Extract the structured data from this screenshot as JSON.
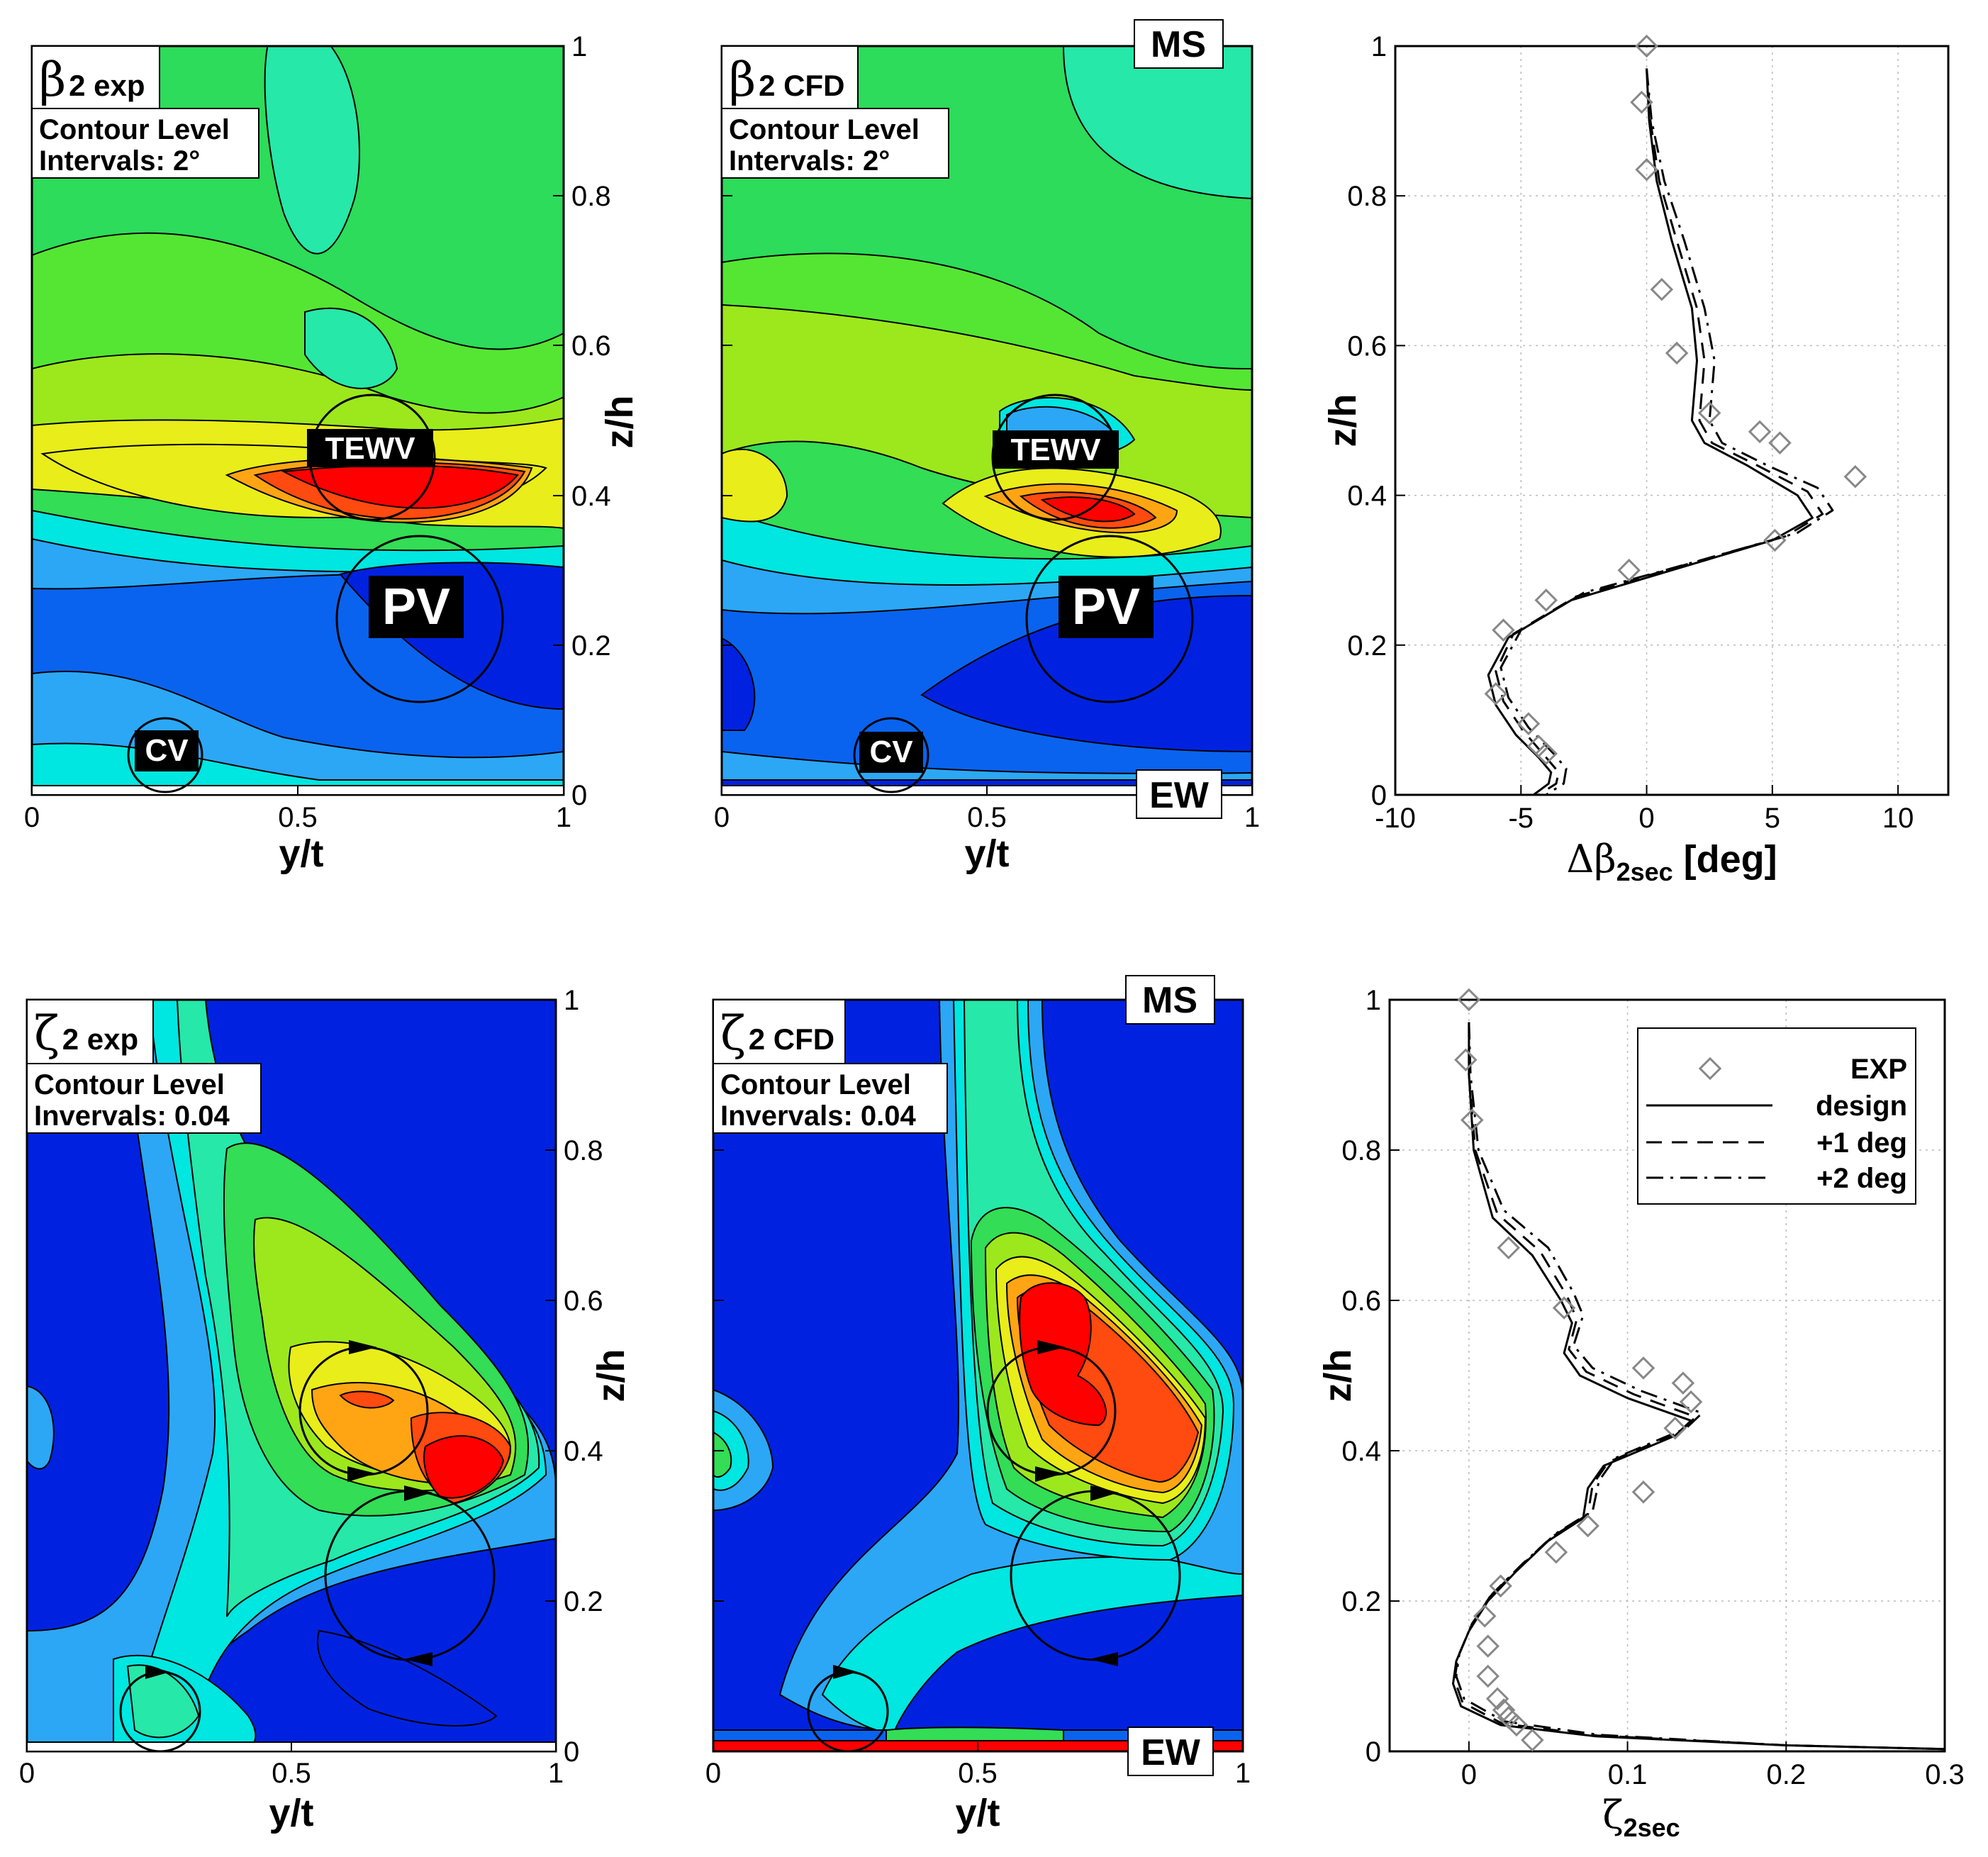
{
  "chart_data": [
    {
      "type": "heatmap",
      "title": "β2 exp",
      "symbol": "β",
      "subscript": "2 exp",
      "contour_text": [
        "Contour Level",
        "Intervals: 2°"
      ],
      "xlabel": "y/t",
      "ylabel": "z/h",
      "xlim": [
        0,
        1
      ],
      "ylim": [
        0,
        1
      ],
      "xticks": [
        "0",
        "0.5",
        "1"
      ],
      "yticks": [
        "0",
        "0.2",
        "0.4",
        "0.6",
        "0.8",
        "1"
      ],
      "labels": [
        "TEWV",
        "PV",
        "CV"
      ],
      "colors": [
        "#0022e0",
        "#0a63ee",
        "#2ca7f5",
        "#00e6e0",
        "#26e8a8",
        "#33dd55",
        "#55e633",
        "#9ce81d",
        "#e9ed1a",
        "#ffa514",
        "#ff4a10",
        "#ff0000"
      ]
    },
    {
      "type": "heatmap",
      "title": "β2 CFD",
      "symbol": "β",
      "subscript": "2 CFD",
      "contour_text": [
        "Contour Level",
        "Intervals: 2°"
      ],
      "xlabel": "y/t",
      "ylabel": "z/h",
      "xlim": [
        0,
        1
      ],
      "ylim": [
        0,
        1
      ],
      "xticks": [
        "0",
        "0.5",
        "1"
      ],
      "yticks": [
        "0",
        "0.2",
        "0.4",
        "0.6",
        "0.8",
        "1"
      ],
      "labels": [
        "TEWV",
        "PV",
        "CV",
        "MS",
        "EW"
      ]
    },
    {
      "type": "line",
      "xlabel": "Δβ2sec [deg]",
      "xlabel_main": "Δβ",
      "xlabel_sub": "2sec",
      "xlabel_unit": " [deg]",
      "ylabel": "z/h",
      "xlim": [
        -10,
        12
      ],
      "ylim": [
        0,
        1
      ],
      "xticks": [
        -10,
        -5,
        0,
        5,
        10
      ],
      "yticks": [
        0,
        0.2,
        0.4,
        0.6,
        0.8,
        1
      ],
      "grid": true,
      "series": [
        {
          "name": "EXP",
          "style": "marker",
          "x": [
            0,
            -0.2,
            0,
            0.6,
            1.2,
            2.5,
            4.5,
            5.3,
            8.3,
            5.1,
            -0.7,
            -4.0,
            -5.7,
            -6.0,
            -4.7,
            -4.3,
            -4.0
          ],
          "y": [
            1.0,
            0.925,
            0.835,
            0.675,
            0.59,
            0.51,
            0.485,
            0.47,
            0.425,
            0.34,
            0.3,
            0.26,
            0.22,
            0.135,
            0.095,
            0.065,
            0.055
          ]
        },
        {
          "name": "design",
          "style": "solid",
          "x": [
            0,
            0.1,
            0.4,
            1.0,
            1.8,
            2.0,
            1.8,
            2.3,
            4.0,
            6.0,
            6.6,
            5.0,
            1.0,
            -3.0,
            -5.5,
            -6.3,
            -6.0,
            -5.2,
            -4.3,
            -3.8,
            -3.9,
            -4.5
          ],
          "y": [
            0.97,
            0.9,
            0.82,
            0.74,
            0.65,
            0.58,
            0.5,
            0.47,
            0.44,
            0.4,
            0.37,
            0.34,
            0.3,
            0.26,
            0.21,
            0.16,
            0.12,
            0.08,
            0.05,
            0.03,
            0.015,
            0.0
          ]
        },
        {
          "name": "+1 deg",
          "style": "dashed",
          "x": [
            0,
            0.15,
            0.5,
            1.2,
            2.0,
            2.3,
            2.1,
            2.6,
            4.4,
            6.4,
            7.0,
            5.5,
            1.3,
            -2.8,
            -5.3,
            -6.0,
            -5.7,
            -4.9,
            -4.0,
            -3.5,
            -3.6,
            -4.3
          ],
          "y": [
            0.97,
            0.9,
            0.82,
            0.74,
            0.65,
            0.58,
            0.5,
            0.47,
            0.44,
            0.405,
            0.375,
            0.345,
            0.305,
            0.265,
            0.215,
            0.165,
            0.125,
            0.085,
            0.05,
            0.03,
            0.015,
            0.0
          ]
        },
        {
          "name": "+2 deg",
          "style": "dashdot",
          "x": [
            0,
            0.2,
            0.7,
            1.5,
            2.3,
            2.7,
            2.5,
            3.0,
            4.8,
            6.8,
            7.4,
            6.0,
            1.8,
            -2.5,
            -5.0,
            -5.8,
            -5.5,
            -4.7,
            -3.7,
            -3.2,
            -3.3,
            -4.0
          ],
          "y": [
            0.97,
            0.9,
            0.82,
            0.74,
            0.65,
            0.58,
            0.5,
            0.47,
            0.44,
            0.41,
            0.38,
            0.35,
            0.31,
            0.27,
            0.22,
            0.17,
            0.13,
            0.09,
            0.055,
            0.035,
            0.015,
            0.0
          ]
        }
      ]
    },
    {
      "type": "heatmap",
      "title": "ζ2 exp",
      "symbol": "ζ",
      "subscript": "2 exp",
      "contour_text": [
        "Contour Level",
        "Invervals: 0.04"
      ],
      "xlabel": "y/t",
      "ylabel": "z/h",
      "xlim": [
        0,
        1
      ],
      "ylim": [
        0,
        1
      ],
      "xticks": [
        "0",
        "0.5",
        "1"
      ],
      "yticks": [
        "0",
        "0.2",
        "0.4",
        "0.6",
        "0.8",
        "1"
      ]
    },
    {
      "type": "heatmap",
      "title": "ζ2 CFD",
      "symbol": "ζ",
      "subscript": "2 CFD",
      "contour_text": [
        "Contour Level",
        "Invervals: 0.04"
      ],
      "xlabel": "y/t",
      "ylabel": "z/h",
      "xlim": [
        0,
        1
      ],
      "ylim": [
        0,
        1
      ],
      "xticks": [
        "0",
        "0.5",
        "1"
      ],
      "yticks": [
        "0",
        "0.2",
        "0.4",
        "0.6",
        "0.8",
        "1"
      ],
      "labels": [
        "MS",
        "EW"
      ]
    },
    {
      "type": "line",
      "xlabel": "ζ2sec",
      "xlabel_main": "ζ",
      "xlabel_sub": "2sec",
      "ylabel": "z/h",
      "xlim": [
        -0.05,
        0.3
      ],
      "ylim": [
        0,
        1
      ],
      "xticks": [
        0,
        0.1,
        0.2,
        0.3
      ],
      "xtick_labels": [
        "0",
        "0.1",
        "0.2",
        "0.3"
      ],
      "yticks": [
        0,
        0.2,
        0.4,
        0.6,
        0.8,
        1
      ],
      "grid": true,
      "legend": "top-right",
      "series": [
        {
          "name": "EXP",
          "style": "marker",
          "x": [
            0,
            -0.002,
            0.002,
            0.025,
            0.06,
            0.11,
            0.135,
            0.14,
            0.13,
            0.11,
            0.075,
            0.055,
            0.02,
            0.01,
            0.012,
            0.012,
            0.018,
            0.022,
            0.025,
            0.03,
            0.04
          ],
          "y": [
            1.0,
            0.92,
            0.84,
            0.67,
            0.59,
            0.51,
            0.49,
            0.465,
            0.43,
            0.345,
            0.3,
            0.265,
            0.22,
            0.18,
            0.14,
            0.1,
            0.07,
            0.055,
            0.045,
            0.035,
            0.015
          ]
        },
        {
          "name": "design",
          "style": "solid",
          "x": [
            0,
            0.0,
            0.003,
            0.015,
            0.04,
            0.058,
            0.065,
            0.06,
            0.07,
            0.1,
            0.14,
            0.13,
            0.085,
            0.075,
            0.072,
            0.05,
            0.03,
            0.012,
            0.0,
            -0.008,
            -0.01,
            -0.005,
            0.02,
            0.08,
            0.2,
            0.3
          ],
          "y": [
            0.97,
            0.9,
            0.8,
            0.71,
            0.66,
            0.6,
            0.57,
            0.53,
            0.5,
            0.47,
            0.44,
            0.42,
            0.38,
            0.35,
            0.31,
            0.28,
            0.24,
            0.2,
            0.16,
            0.12,
            0.09,
            0.06,
            0.035,
            0.02,
            0.008,
            0.003
          ]
        },
        {
          "name": "+1 deg",
          "style": "dashed",
          "x": [
            0,
            0.0,
            0.004,
            0.018,
            0.045,
            0.062,
            0.068,
            0.063,
            0.074,
            0.104,
            0.143,
            0.133,
            0.088,
            0.078,
            0.075,
            0.052,
            0.032,
            0.013,
            0.001,
            -0.007,
            -0.009,
            -0.004,
            0.021,
            0.081,
            0.2,
            0.3
          ],
          "y": [
            0.97,
            0.9,
            0.8,
            0.715,
            0.665,
            0.605,
            0.575,
            0.535,
            0.505,
            0.475,
            0.445,
            0.425,
            0.385,
            0.355,
            0.315,
            0.285,
            0.245,
            0.205,
            0.165,
            0.125,
            0.095,
            0.065,
            0.037,
            0.021,
            0.008,
            0.003
          ]
        },
        {
          "name": "+2 deg",
          "style": "dashdot",
          "x": [
            0,
            0.001,
            0.006,
            0.022,
            0.05,
            0.066,
            0.072,
            0.066,
            0.078,
            0.108,
            0.147,
            0.137,
            0.092,
            0.082,
            0.078,
            0.055,
            0.034,
            0.015,
            0.002,
            -0.006,
            -0.008,
            -0.003,
            0.022,
            0.082,
            0.2,
            0.3
          ],
          "y": [
            0.97,
            0.9,
            0.8,
            0.72,
            0.67,
            0.61,
            0.58,
            0.54,
            0.51,
            0.48,
            0.45,
            0.43,
            0.39,
            0.36,
            0.32,
            0.29,
            0.25,
            0.21,
            0.17,
            0.13,
            0.1,
            0.07,
            0.04,
            0.022,
            0.008,
            0.003
          ]
        }
      ]
    }
  ]
}
